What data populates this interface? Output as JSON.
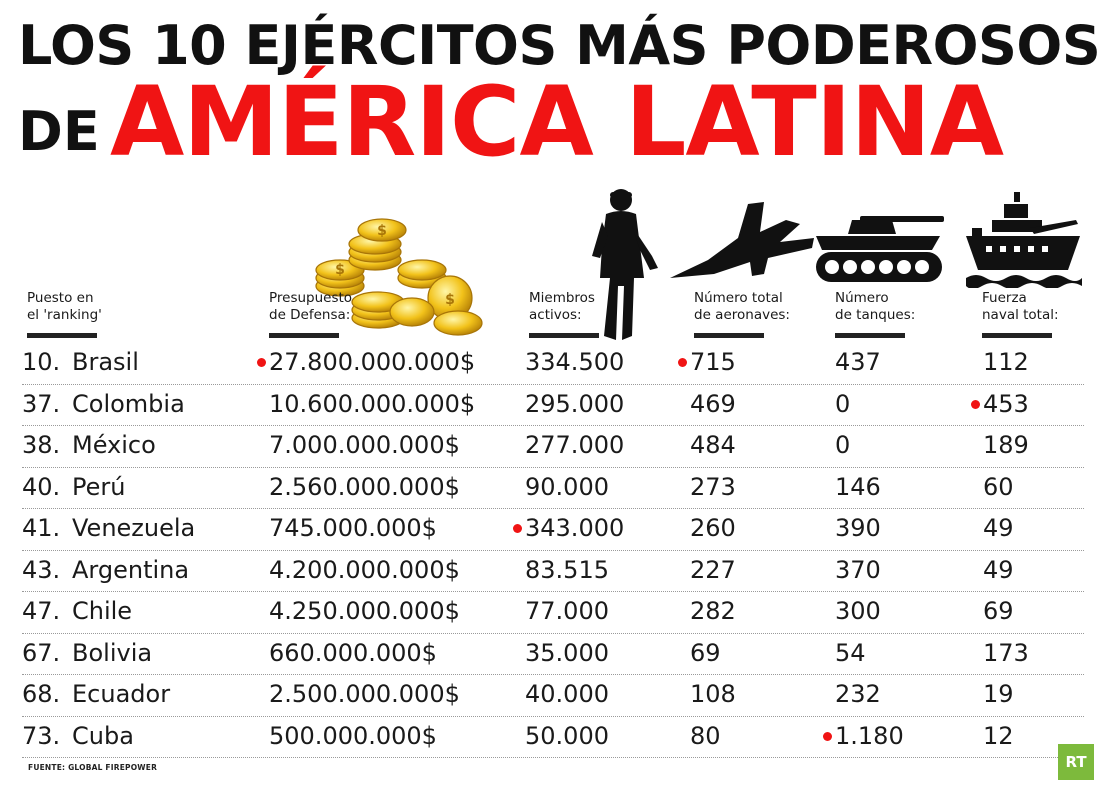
{
  "title": {
    "line1": "LOS 10 EJÉRCITOS MÁS PODEROSOS",
    "de": "DE",
    "line2": "AMÉRICA LATINA"
  },
  "colors": {
    "accent": "#f01414",
    "text": "#1a1a1a",
    "logo": "#7dba3c"
  },
  "icons": [
    "coins-icon",
    "soldier-icon",
    "fighter-jet-icon",
    "tank-icon",
    "warship-icon"
  ],
  "headers": {
    "rank": [
      "Puesto en",
      "el 'ranking'"
    ],
    "budget": [
      "Presupuesto",
      "de Defensa:"
    ],
    "members": [
      "Miembros",
      "activos:"
    ],
    "aircraft": [
      "Número total",
      "de aeronaves:"
    ],
    "tanks": [
      "Número",
      "de tanques:"
    ],
    "naval": [
      "Fuerza",
      "naval total:"
    ]
  },
  "chart_data": {
    "type": "table",
    "columns": [
      "Puesto en el 'ranking'",
      "Presupuesto de Defensa:",
      "Miembros activos:",
      "Número total de aeronaves:",
      "Número de tanques:",
      "Fuerza naval total:"
    ],
    "rows": [
      {
        "rank": "10.",
        "country": "Brasil",
        "budget": "27.800.000.000$",
        "members": "334.500",
        "aircraft": "715",
        "tanks": "437",
        "naval": "112"
      },
      {
        "rank": "37.",
        "country": "Colombia",
        "budget": "10.600.000.000$",
        "members": "295.000",
        "aircraft": "469",
        "tanks": "0",
        "naval": "453"
      },
      {
        "rank": "38.",
        "country": "México",
        "budget": "7.000.000.000$",
        "members": "277.000",
        "aircraft": "484",
        "tanks": "0",
        "naval": "189"
      },
      {
        "rank": "40.",
        "country": "Perú",
        "budget": "2.560.000.000$",
        "members": "90.000",
        "aircraft": "273",
        "tanks": "146",
        "naval": "60"
      },
      {
        "rank": "41.",
        "country": "Venezuela",
        "budget": "745.000.000$",
        "members": "343.000",
        "aircraft": "260",
        "tanks": "390",
        "naval": "49"
      },
      {
        "rank": "43.",
        "country": "Argentina",
        "budget": "4.200.000.000$",
        "members": "83.515",
        "aircraft": "227",
        "tanks": "370",
        "naval": "49"
      },
      {
        "rank": "47.",
        "country": "Chile",
        "budget": "4.250.000.000$",
        "members": "77.000",
        "aircraft": "282",
        "tanks": "300",
        "naval": "69"
      },
      {
        "rank": "67.",
        "country": "Bolivia",
        "budget": "660.000.000$",
        "members": "35.000",
        "aircraft": "69",
        "tanks": "54",
        "naval": "173"
      },
      {
        "rank": "68.",
        "country": "Ecuador",
        "budget": "2.500.000.000$",
        "members": "40.000",
        "aircraft": "108",
        "tanks": "232",
        "naval": "19"
      },
      {
        "rank": "73.",
        "country": "Cuba",
        "budget": "500.000.000$",
        "members": "50.000",
        "aircraft": "80",
        "tanks": "1.180",
        "naval": "12"
      }
    ],
    "highlights": [
      {
        "country": "Brasil",
        "column": "budget"
      },
      {
        "country": "Brasil",
        "column": "aircraft"
      },
      {
        "country": "Colombia",
        "column": "naval"
      },
      {
        "country": "Venezuela",
        "column": "members"
      },
      {
        "country": "Cuba",
        "column": "tanks"
      }
    ]
  },
  "footer": {
    "source": "FUENTE: GLOBAL FIREPOWER",
    "logo": "RT"
  }
}
